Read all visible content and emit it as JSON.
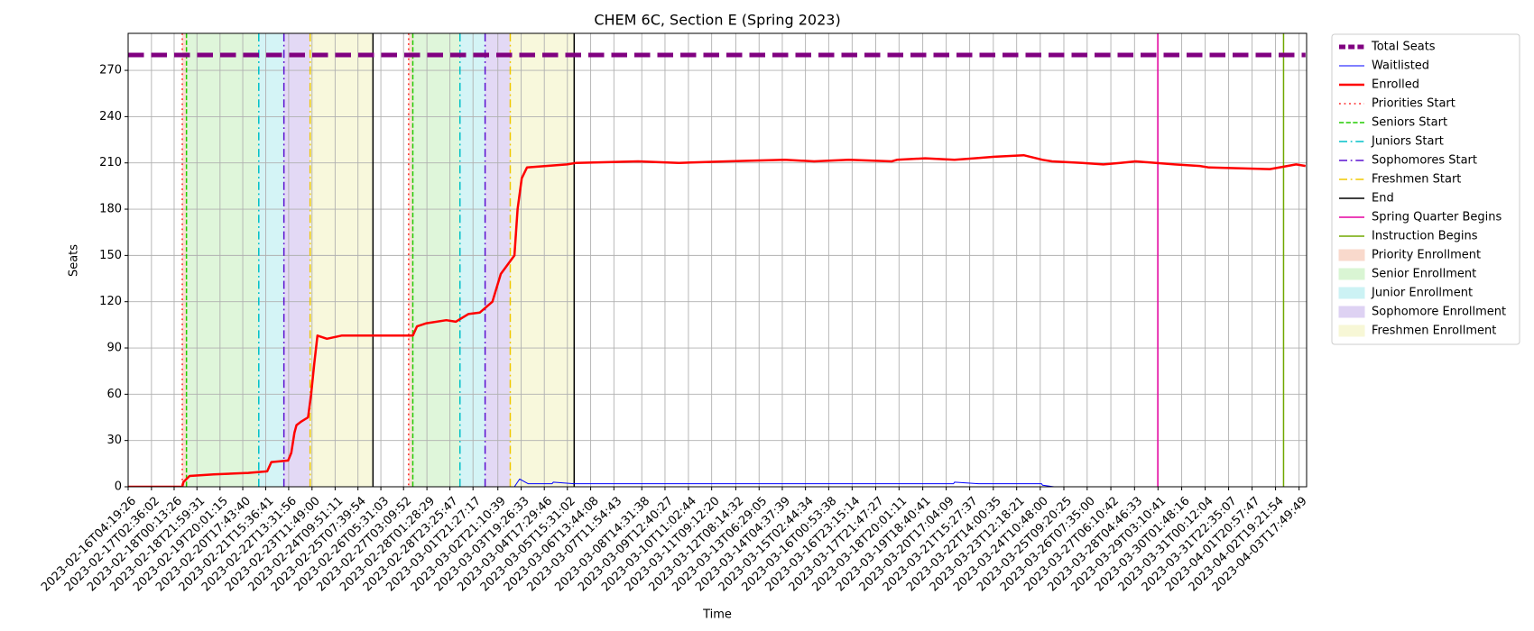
{
  "chart_data": {
    "type": "line",
    "title": "CHEM 6C, Section E (Spring 2023)",
    "x_label": "Time",
    "y_label": "Seats",
    "xlim": [
      "2023-02-16T04:19:26",
      "2023-04-04T01:00"
    ],
    "ylim": [
      0,
      294
    ],
    "yticks": [
      0,
      30,
      60,
      90,
      120,
      150,
      180,
      210,
      240,
      270
    ],
    "xticks": [
      "2023-02-16T04:19:26",
      "2023-02-17T02:36:02",
      "2023-02-18T00:13:26",
      "2023-02-18T21:59:31",
      "2023-02-19T20:01:15",
      "2023-02-20T17:43:40",
      "2023-02-21T15:36:41",
      "2023-02-22T13:31:56",
      "2023-02-23T11:49:00",
      "2023-02-24T09:51:11",
      "2023-02-25T07:39:54",
      "2023-02-26T05:31:03",
      "2023-02-27T03:09:52",
      "2023-02-28T01:28:29",
      "2023-02-28T23:25:47",
      "2023-03-01T21:27:17",
      "2023-03-02T21:10:39",
      "2023-03-03T19:26:33",
      "2023-03-04T17:29:46",
      "2023-03-05T15:31:02",
      "2023-03-06T13:44:08",
      "2023-03-07T11:54:43",
      "2023-03-08T14:31:38",
      "2023-03-09T12:40:27",
      "2023-03-10T11:02:44",
      "2023-03-11T09:12:20",
      "2023-03-12T08:14:32",
      "2023-03-13T06:29:05",
      "2023-03-14T04:37:39",
      "2023-03-15T02:44:34",
      "2023-03-16T00:53:38",
      "2023-03-16T23:15:14",
      "2023-03-17T21:47:27",
      "2023-03-18T20:01:11",
      "2023-03-19T18:40:41",
      "2023-03-20T17:04:09",
      "2023-03-21T15:27:37",
      "2023-03-22T14:00:35",
      "2023-03-23T12:18:21",
      "2023-03-24T10:48:00",
      "2023-03-25T09:20:25",
      "2023-03-26T07:35:00",
      "2023-03-27T06:10:42",
      "2023-03-28T04:46:33",
      "2023-03-29T03:10:41",
      "2023-03-30T01:48:16",
      "2023-03-31T00:12:04",
      "2023-03-31T22:35:07",
      "2023-04-01T20:57:47",
      "2023-04-02T19:21:54",
      "2023-04-03T17:49:49"
    ],
    "grid": true,
    "legend": "outside-right",
    "series": [
      {
        "name": "Total Seats",
        "color": "#800080",
        "linestyle": "--",
        "linewidth": 5,
        "x": [
          "2023-02-16T04:19:26",
          "2023-04-04T00:00"
        ],
        "values": [
          280,
          280
        ]
      },
      {
        "name": "Waitlisted",
        "color": "#0000ff",
        "linestyle": "-",
        "linewidth": 1,
        "x": [
          "2023-02-16T04:19:26",
          "2023-03-03T13:00",
          "2023-03-03T18:00",
          "2023-03-04T02:00",
          "2023-03-05T01:00",
          "2023-03-05T02:00",
          "2023-03-05T22:00",
          "2023-03-21T00:00",
          "2023-03-21T01:00",
          "2023-03-22T00:00",
          "2023-03-24T12:00",
          "2023-03-24T13:00",
          "2023-03-25T00:00",
          "2023-04-04T00:00"
        ],
        "values": [
          0,
          0,
          5,
          2,
          2,
          3,
          2,
          2,
          3,
          2,
          2,
          1,
          0,
          0
        ]
      },
      {
        "name": "Enrolled",
        "color": "#ff0000",
        "linestyle": "-",
        "linewidth": 2.5,
        "x": [
          "2023-02-16T04:19:26",
          "2023-02-18T08:00",
          "2023-02-18T09:00",
          "2023-02-18T15:00",
          "2023-02-19T14:00",
          "2023-02-20T23:00",
          "2023-02-21T17:00",
          "2023-02-21T21:00",
          "2023-02-22T13:00",
          "2023-02-22T16:00",
          "2023-02-22T19:00",
          "2023-02-22T21:00",
          "2023-02-23T01:00",
          "2023-02-23T08:00",
          "2023-02-23T11:00",
          "2023-02-23T14:00",
          "2023-02-23T17:00",
          "2023-02-24T02:00",
          "2023-02-24T16:00",
          "2023-02-27T12:00",
          "2023-02-27T16:00",
          "2023-02-28T01:00",
          "2023-02-28T20:00",
          "2023-03-01T05:00",
          "2023-03-01T17:00",
          "2023-03-02T04:00",
          "2023-03-02T16:00",
          "2023-03-03T00:00",
          "2023-03-03T13:00",
          "2023-03-03T16:00",
          "2023-03-03T20:00",
          "2023-03-04T01:00",
          "2023-03-05T15:00",
          "2023-03-06T00:00",
          "2023-03-08T11:00",
          "2023-03-10T02:00",
          "2023-03-12T00:00",
          "2023-03-14T07:00",
          "2023-03-15T11:00",
          "2023-03-16T20:00",
          "2023-03-18T13:00",
          "2023-03-18T18:00",
          "2023-03-19T21:00",
          "2023-03-21T01:00",
          "2023-03-21T20:00",
          "2023-03-22T15:00",
          "2023-03-23T19:00",
          "2023-03-24T13:00",
          "2023-03-24T22:00",
          "2023-03-26T03:00",
          "2023-03-26T23:00",
          "2023-03-27T15:00",
          "2023-03-28T06:00",
          "2023-03-29T19:00",
          "2023-03-30T19:00",
          "2023-03-31T04:00",
          "2023-04-02T14:00",
          "2023-04-03T15:00",
          "2023-04-04T00:00"
        ],
        "values": [
          0,
          0,
          3,
          7,
          8,
          9,
          10,
          16,
          17,
          22,
          35,
          40,
          42,
          45,
          60,
          80,
          98,
          96,
          98,
          98,
          104,
          106,
          108,
          107,
          112,
          113,
          120,
          138,
          150,
          180,
          200,
          207,
          209,
          210,
          211,
          210,
          211,
          212,
          211,
          212,
          211,
          212,
          213,
          212,
          213,
          214,
          215,
          212,
          211,
          210,
          209,
          210,
          211,
          209,
          208,
          207,
          206,
          209,
          208
        ]
      }
    ],
    "markers": [
      {
        "name": "Priorities Start",
        "color": "#ff2020",
        "linestyle": ":",
        "x": [
          "2023-02-18T08:00",
          "2023-02-27T08:00"
        ]
      },
      {
        "name": "Seniors Start",
        "color": "#22cc00",
        "linestyle": "--",
        "x": [
          "2023-02-18T12:00",
          "2023-02-27T12:00"
        ]
      },
      {
        "name": "Juniors Start",
        "color": "#00c0c8",
        "linestyle": "-.",
        "x": [
          "2023-02-21T09:00",
          "2023-03-01T09:00"
        ]
      },
      {
        "name": "Sophomores Start",
        "color": "#5a10d0",
        "linestyle": "-.",
        "x": [
          "2023-02-22T09:00",
          "2023-03-02T09:00"
        ]
      },
      {
        "name": "Freshmen Start",
        "color": "#f0c800",
        "linestyle": "-.",
        "x": [
          "2023-02-23T10:00",
          "2023-03-03T09:00"
        ]
      },
      {
        "name": "End",
        "color": "#000000",
        "linestyle": "-",
        "x": [
          "2023-02-25T22:00",
          "2023-03-05T22:00"
        ]
      },
      {
        "name": "Spring Quarter Begins",
        "color": "#e600a0",
        "linestyle": "-",
        "x": [
          "2023-03-29T03:00"
        ]
      },
      {
        "name": "Instruction Begins",
        "color": "#70a800",
        "linestyle": "-",
        "x": [
          "2023-04-03T03:00"
        ]
      }
    ],
    "spans": [
      {
        "name": "Priority Enrollment",
        "color": "#f9d9cc",
        "x": [
          [
            "2023-02-18T08:00",
            "2023-02-18T12:00"
          ],
          [
            "2023-02-27T08:00",
            "2023-02-27T12:00"
          ]
        ]
      },
      {
        "name": "Senior Enrollment",
        "color": "#d9f5d3",
        "x": [
          [
            "2023-02-18T12:00",
            "2023-02-21T09:00"
          ],
          [
            "2023-02-27T12:00",
            "2023-03-01T09:00"
          ]
        ]
      },
      {
        "name": "Junior Enrollment",
        "color": "#ccf2f4",
        "x": [
          [
            "2023-02-21T09:00",
            "2023-02-22T09:00"
          ],
          [
            "2023-03-01T09:00",
            "2023-03-02T09:00"
          ]
        ]
      },
      {
        "name": "Sophomore Enrollment",
        "color": "#ded2f3",
        "x": [
          [
            "2023-02-22T09:00",
            "2023-02-23T10:00"
          ],
          [
            "2023-03-02T09:00",
            "2023-03-03T09:00"
          ]
        ]
      },
      {
        "name": "Freshmen Enrollment",
        "color": "#f7f7d6",
        "x": [
          [
            "2023-02-23T10:00",
            "2023-02-25T22:00"
          ],
          [
            "2023-03-03T09:00",
            "2023-03-05T22:00"
          ]
        ]
      }
    ]
  }
}
